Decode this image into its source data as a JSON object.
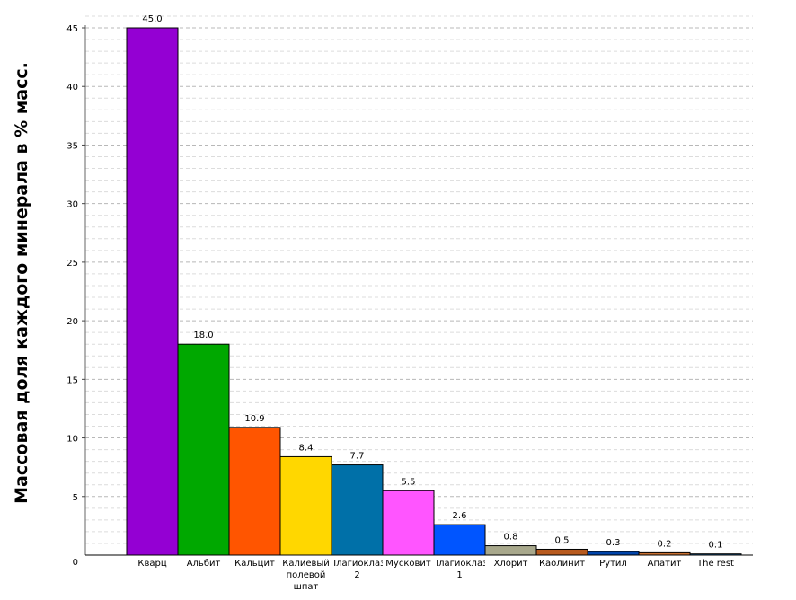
{
  "chart_data": {
    "type": "bar",
    "ylabel": "Массовая доля каждого минерала в % масс.",
    "ylim": [
      0,
      46
    ],
    "yticks": [
      0,
      5,
      10,
      15,
      20,
      25,
      30,
      35,
      40,
      45
    ],
    "grid": true,
    "categories": [
      [
        "Кварц"
      ],
      [
        "Альбит"
      ],
      [
        "Кальцит"
      ],
      [
        "Калиевый",
        "полевой",
        "шпат"
      ],
      [
        "Плагиоклаз",
        "2"
      ],
      [
        "Мусковит"
      ],
      [
        "Плагиоклаз",
        "1"
      ],
      [
        "Хлорит"
      ],
      [
        "Каолинит"
      ],
      [
        "Рутил"
      ],
      [
        "Апатит"
      ],
      [
        "The rest"
      ]
    ],
    "values": [
      45.0,
      18.0,
      10.9,
      8.4,
      7.7,
      5.5,
      2.6,
      0.8,
      0.5,
      0.3,
      0.2,
      0.1
    ],
    "value_labels": [
      "45.0",
      "18.0",
      "10.9",
      "8.4",
      "7.7",
      "5.5",
      "2.6",
      "0.8",
      "0.5",
      "0.3",
      "0.2",
      "0.1"
    ],
    "colors": [
      "#9400d3",
      "#00a800",
      "#ff5500",
      "#ffd700",
      "#0070a8",
      "#ff55ff",
      "#0055ff",
      "#a8a88c",
      "#b85a1e",
      "#0044aa",
      "#c87030",
      "#1e6fb0"
    ]
  }
}
